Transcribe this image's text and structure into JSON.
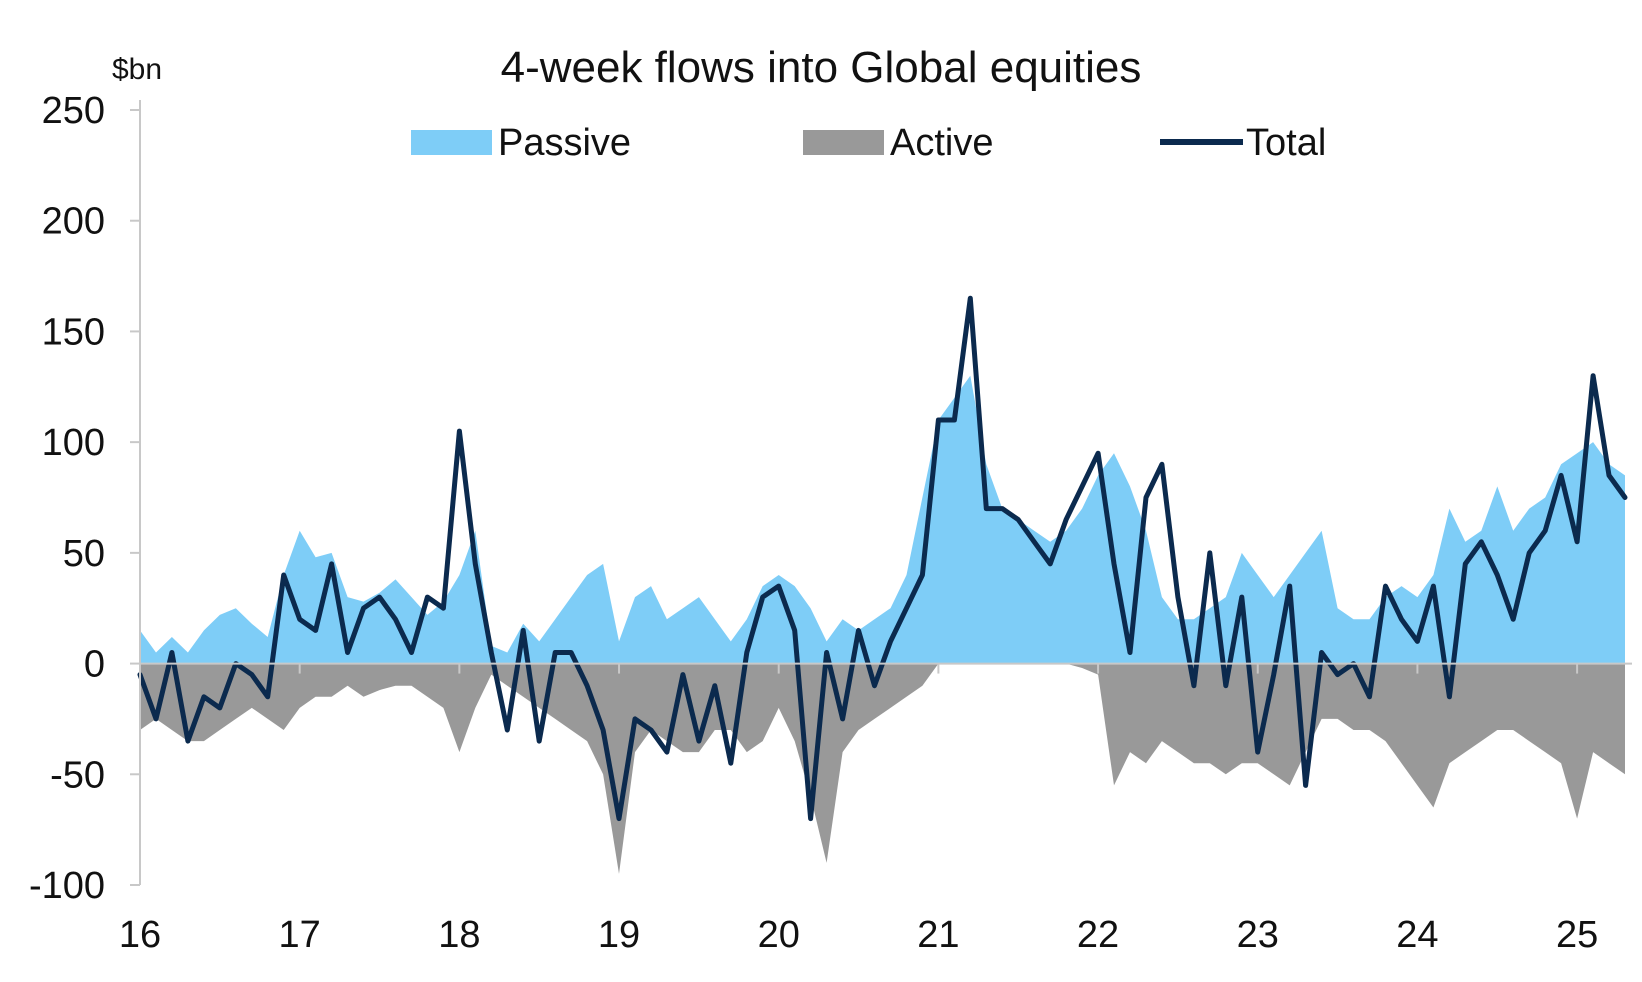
{
  "chart_data": {
    "type": "area",
    "title": "4-week flows into Global equities",
    "ylabel": "$bn",
    "xlabel": "",
    "ylim": [
      -100,
      250
    ],
    "xlim": [
      16,
      25.3
    ],
    "y_ticks": [
      250,
      200,
      150,
      100,
      50,
      0,
      -50,
      -100
    ],
    "y_tick_labels": [
      "250",
      "200",
      "150",
      "100",
      "50",
      "0",
      "-50",
      "-100"
    ],
    "x_ticks": [
      16,
      17,
      18,
      19,
      20,
      21,
      22,
      23,
      24,
      25
    ],
    "x_tick_labels": [
      "16",
      "17",
      "18",
      "19",
      "20",
      "21",
      "22",
      "23",
      "24",
      "25"
    ],
    "grid": false,
    "legend_position": "top",
    "colors": {
      "passive": "#7ecdf7",
      "active": "#999999",
      "total": "#0b2a4e",
      "axis": "#c8c8c8"
    },
    "series": [
      {
        "name": "Passive",
        "kind": "area",
        "x": [
          16.0,
          16.1,
          16.2,
          16.3,
          16.4,
          16.5,
          16.6,
          16.7,
          16.8,
          16.9,
          17.0,
          17.1,
          17.2,
          17.3,
          17.4,
          17.5,
          17.6,
          17.7,
          17.8,
          17.9,
          18.0,
          18.1,
          18.2,
          18.3,
          18.4,
          18.5,
          18.6,
          18.7,
          18.8,
          18.9,
          19.0,
          19.1,
          19.2,
          19.3,
          19.4,
          19.5,
          19.6,
          19.7,
          19.8,
          19.9,
          20.0,
          20.1,
          20.2,
          20.3,
          20.4,
          20.5,
          20.6,
          20.7,
          20.8,
          20.9,
          21.0,
          21.1,
          21.2,
          21.3,
          21.4,
          21.5,
          21.6,
          21.7,
          21.8,
          21.9,
          22.0,
          22.1,
          22.2,
          22.3,
          22.4,
          22.5,
          22.6,
          22.7,
          22.8,
          22.9,
          23.0,
          23.1,
          23.2,
          23.3,
          23.4,
          23.5,
          23.6,
          23.7,
          23.8,
          23.9,
          24.0,
          24.1,
          24.2,
          24.3,
          24.4,
          24.5,
          24.6,
          24.7,
          24.8,
          24.9,
          25.0,
          25.1,
          25.2,
          25.3
        ],
        "values": [
          15,
          5,
          12,
          5,
          15,
          22,
          25,
          18,
          12,
          40,
          60,
          48,
          50,
          30,
          28,
          32,
          38,
          30,
          22,
          28,
          40,
          60,
          8,
          5,
          18,
          10,
          20,
          30,
          40,
          45,
          10,
          30,
          35,
          20,
          25,
          30,
          20,
          10,
          20,
          35,
          40,
          35,
          25,
          10,
          20,
          15,
          20,
          25,
          40,
          75,
          110,
          120,
          130,
          90,
          70,
          65,
          60,
          55,
          60,
          70,
          85,
          95,
          80,
          60,
          30,
          20,
          20,
          25,
          30,
          50,
          40,
          30,
          40,
          50,
          60,
          25,
          20,
          20,
          30,
          35,
          30,
          40,
          70,
          55,
          60,
          80,
          60,
          70,
          75,
          90,
          95,
          100,
          90,
          85
        ]
      },
      {
        "name": "Active",
        "kind": "area",
        "x": [
          16.0,
          16.1,
          16.2,
          16.3,
          16.4,
          16.5,
          16.6,
          16.7,
          16.8,
          16.9,
          17.0,
          17.1,
          17.2,
          17.3,
          17.4,
          17.5,
          17.6,
          17.7,
          17.8,
          17.9,
          18.0,
          18.1,
          18.2,
          18.3,
          18.4,
          18.5,
          18.6,
          18.7,
          18.8,
          18.9,
          19.0,
          19.1,
          19.2,
          19.3,
          19.4,
          19.5,
          19.6,
          19.7,
          19.8,
          19.9,
          20.0,
          20.1,
          20.2,
          20.3,
          20.4,
          20.5,
          20.6,
          20.7,
          20.8,
          20.9,
          21.0,
          21.1,
          21.2,
          21.3,
          21.4,
          21.5,
          21.6,
          21.7,
          21.8,
          21.9,
          22.0,
          22.1,
          22.2,
          22.3,
          22.4,
          22.5,
          22.6,
          22.7,
          22.8,
          22.9,
          23.0,
          23.1,
          23.2,
          23.3,
          23.4,
          23.5,
          23.6,
          23.7,
          23.8,
          23.9,
          24.0,
          24.1,
          24.2,
          24.3,
          24.4,
          24.5,
          24.6,
          24.7,
          24.8,
          24.9,
          25.0,
          25.1,
          25.2,
          25.3
        ],
        "values": [
          -30,
          -25,
          -30,
          -35,
          -35,
          -30,
          -25,
          -20,
          -25,
          -30,
          -20,
          -15,
          -15,
          -10,
          -15,
          -12,
          -10,
          -10,
          -15,
          -20,
          -40,
          -20,
          -5,
          -10,
          -15,
          -20,
          -25,
          -30,
          -35,
          -50,
          -95,
          -40,
          -30,
          -35,
          -40,
          -40,
          -30,
          -30,
          -40,
          -35,
          -20,
          -35,
          -60,
          -90,
          -40,
          -30,
          -25,
          -20,
          -15,
          -10,
          0,
          0,
          0,
          0,
          0,
          0,
          0,
          0,
          0,
          -2,
          -5,
          -55,
          -40,
          -45,
          -35,
          -40,
          -45,
          -45,
          -50,
          -45,
          -45,
          -50,
          -55,
          -40,
          -25,
          -25,
          -30,
          -30,
          -35,
          -45,
          -55,
          -65,
          -45,
          -40,
          -35,
          -30,
          -30,
          -35,
          -40,
          -45,
          -70,
          -40,
          -45,
          -50
        ]
      },
      {
        "name": "Total",
        "kind": "line",
        "x": [
          16.0,
          16.1,
          16.2,
          16.3,
          16.4,
          16.5,
          16.6,
          16.7,
          16.8,
          16.9,
          17.0,
          17.1,
          17.2,
          17.3,
          17.4,
          17.5,
          17.6,
          17.7,
          17.8,
          17.9,
          18.0,
          18.1,
          18.2,
          18.3,
          18.4,
          18.5,
          18.6,
          18.7,
          18.8,
          18.9,
          19.0,
          19.1,
          19.2,
          19.3,
          19.4,
          19.5,
          19.6,
          19.7,
          19.8,
          19.9,
          20.0,
          20.1,
          20.2,
          20.3,
          20.4,
          20.5,
          20.6,
          20.7,
          20.8,
          20.9,
          21.0,
          21.1,
          21.2,
          21.3,
          21.4,
          21.5,
          21.6,
          21.7,
          21.8,
          21.9,
          22.0,
          22.1,
          22.2,
          22.3,
          22.4,
          22.5,
          22.6,
          22.7,
          22.8,
          22.9,
          23.0,
          23.1,
          23.2,
          23.3,
          23.4,
          23.5,
          23.6,
          23.7,
          23.8,
          23.9,
          24.0,
          24.1,
          24.2,
          24.3,
          24.4,
          24.5,
          24.6,
          24.7,
          24.8,
          24.9,
          25.0,
          25.1,
          25.2,
          25.3
        ],
        "values": [
          -5,
          -25,
          5,
          -35,
          -15,
          -20,
          0,
          -5,
          -15,
          40,
          20,
          15,
          45,
          5,
          25,
          30,
          20,
          5,
          30,
          25,
          105,
          45,
          5,
          -30,
          15,
          -35,
          5,
          5,
          -10,
          -30,
          -70,
          -25,
          -30,
          -40,
          -5,
          -35,
          -10,
          -45,
          5,
          30,
          35,
          15,
          -70,
          5,
          -25,
          15,
          -10,
          10,
          25,
          40,
          110,
          110,
          165,
          70,
          70,
          65,
          55,
          45,
          65,
          80,
          95,
          45,
          5,
          75,
          90,
          30,
          -10,
          50,
          -10,
          30,
          -40,
          -5,
          35,
          -55,
          5,
          -5,
          0,
          -15,
          35,
          20,
          10,
          35,
          -15,
          45,
          55,
          40,
          20,
          50,
          60,
          85,
          55,
          130,
          85,
          75
        ]
      }
    ]
  }
}
